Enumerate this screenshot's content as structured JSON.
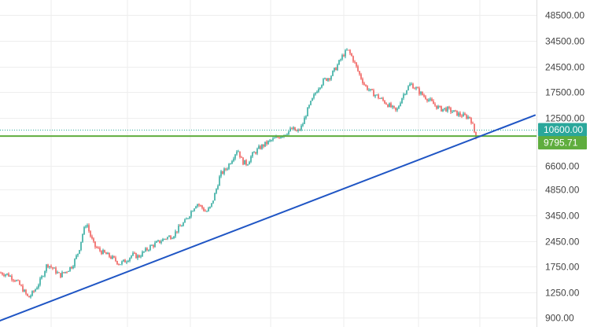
{
  "chart_data": {
    "type": "candlestick",
    "scale": "log",
    "grid": true,
    "ylim": [
      860,
      52000
    ],
    "y_ticks": [
      {
        "value": 48500,
        "label": "48500.00"
      },
      {
        "value": 34500,
        "label": "34500.00"
      },
      {
        "value": 24500,
        "label": "24500.00"
      },
      {
        "value": 17500,
        "label": "17500.00"
      },
      {
        "value": 12500,
        "label": "12500.00"
      },
      {
        "value": 6600,
        "label": "6600.00"
      },
      {
        "value": 4850,
        "label": "4850.00"
      },
      {
        "value": 3450,
        "label": "3450.00"
      },
      {
        "value": 2450,
        "label": "2450.00"
      },
      {
        "value": 1750,
        "label": "1750.00"
      },
      {
        "value": 1250,
        "label": "1250.00"
      },
      {
        "value": 900,
        "label": "900.00"
      }
    ],
    "price_path": [
      [
        0,
        1620
      ],
      [
        10,
        1580
      ],
      [
        20,
        1470
      ],
      [
        28,
        1320
      ],
      [
        36,
        1160
      ],
      [
        44,
        1280
      ],
      [
        52,
        1480
      ],
      [
        60,
        1820
      ],
      [
        68,
        1700
      ],
      [
        76,
        1560
      ],
      [
        84,
        1650
      ],
      [
        92,
        1780
      ],
      [
        100,
        2150
      ],
      [
        105,
        2700
      ],
      [
        110,
        3150
      ],
      [
        114,
        2700
      ],
      [
        120,
        2300
      ],
      [
        128,
        2150
      ],
      [
        136,
        2050
      ],
      [
        144,
        1950
      ],
      [
        152,
        1820
      ],
      [
        160,
        1900
      ],
      [
        168,
        2050
      ],
      [
        176,
        2000
      ],
      [
        184,
        2150
      ],
      [
        192,
        2300
      ],
      [
        200,
        2400
      ],
      [
        210,
        2550
      ],
      [
        220,
        2650
      ],
      [
        228,
        2950
      ],
      [
        236,
        3200
      ],
      [
        244,
        3700
      ],
      [
        250,
        4050
      ],
      [
        256,
        3850
      ],
      [
        262,
        3600
      ],
      [
        268,
        3850
      ],
      [
        274,
        4700
      ],
      [
        280,
        5900
      ],
      [
        288,
        6400
      ],
      [
        296,
        7400
      ],
      [
        302,
        8300
      ],
      [
        308,
        7000
      ],
      [
        314,
        6800
      ],
      [
        320,
        7600
      ],
      [
        330,
        8400
      ],
      [
        340,
        9000
      ],
      [
        350,
        9500
      ],
      [
        360,
        10000
      ],
      [
        366,
        10400
      ],
      [
        372,
        10800
      ],
      [
        378,
        10300
      ],
      [
        384,
        11200
      ],
      [
        390,
        13500
      ],
      [
        396,
        15500
      ],
      [
        404,
        18500
      ],
      [
        412,
        20500
      ],
      [
        420,
        21500
      ],
      [
        428,
        24500
      ],
      [
        436,
        28500
      ],
      [
        442,
        30500
      ],
      [
        448,
        27500
      ],
      [
        456,
        22500
      ],
      [
        464,
        19000
      ],
      [
        472,
        17500
      ],
      [
        480,
        16500
      ],
      [
        488,
        15500
      ],
      [
        496,
        14500
      ],
      [
        504,
        13500
      ],
      [
        510,
        16000
      ],
      [
        516,
        18000
      ],
      [
        522,
        19500
      ],
      [
        528,
        18500
      ],
      [
        536,
        17000
      ],
      [
        544,
        16000
      ],
      [
        552,
        14800
      ],
      [
        560,
        14000
      ],
      [
        568,
        14000
      ],
      [
        576,
        13500
      ],
      [
        584,
        13000
      ],
      [
        592,
        12700
      ],
      [
        598,
        12500
      ],
      [
        601,
        11200
      ],
      [
        604,
        10000
      ],
      [
        606,
        9700
      ]
    ],
    "trendline": {
      "color": "#1f55c4",
      "from": [
        0,
        860
      ],
      "to": [
        680,
        12900
      ]
    },
    "horizontal_lines": [
      {
        "value": 10600,
        "color": "#2aa79b",
        "style": "dotted",
        "label": "10600.00"
      },
      {
        "value": 9795.71,
        "color": "#5fad3e",
        "style": "solid",
        "label": "9795.71"
      }
    ],
    "colors": {
      "up": "#26a69a",
      "down": "#ef5350",
      "grid": "#eeeeee",
      "axis_text": "#444444"
    }
  }
}
